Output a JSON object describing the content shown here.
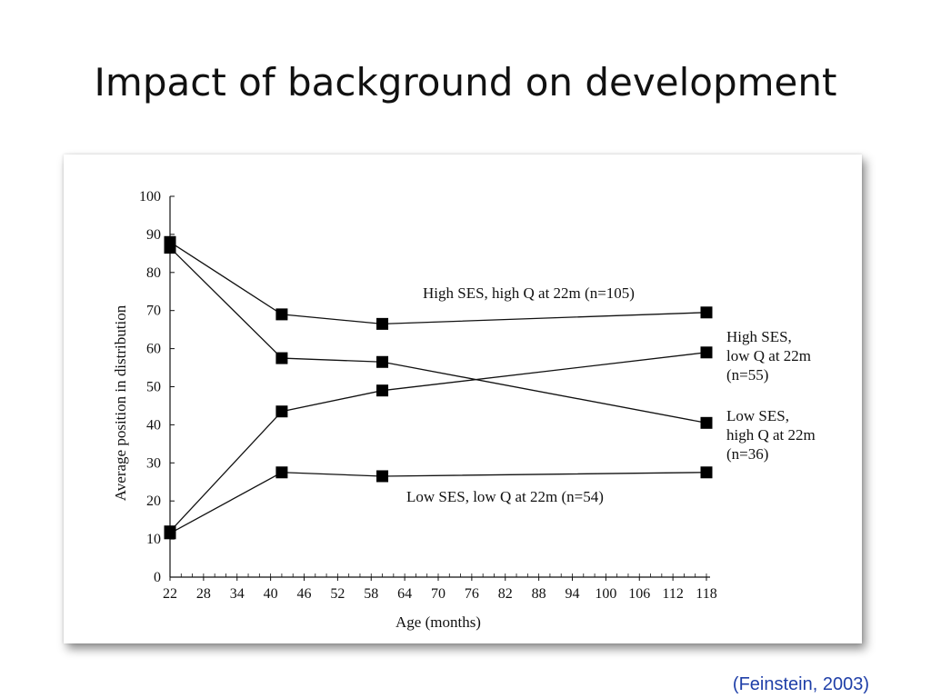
{
  "slide": {
    "title": "Impact of background on development",
    "citation": "(Feinstein, 2003)"
  },
  "chart_data": {
    "type": "line",
    "title": "",
    "xlabel": "Age (months)",
    "ylabel": "Average position in distribution",
    "xlim": [
      22,
      118
    ],
    "ylim": [
      0,
      100
    ],
    "x_ticks": [
      22,
      28,
      34,
      40,
      46,
      52,
      58,
      64,
      70,
      76,
      82,
      88,
      94,
      100,
      106,
      112,
      118
    ],
    "y_ticks": [
      0,
      10,
      20,
      30,
      40,
      50,
      60,
      70,
      80,
      90,
      100
    ],
    "x": [
      22,
      42,
      60,
      118
    ],
    "grid": false,
    "legend": "direct labels next to series",
    "colors": {
      "line": "#111111",
      "marker": "#000000"
    },
    "series": [
      {
        "name": "High SES, high Q at 22m (n=105)",
        "values": [
          88,
          69,
          66.5,
          69.5
        ]
      },
      {
        "name": "High SES, low Q at 22m (n=55)",
        "values": [
          12,
          43.5,
          49,
          59
        ]
      },
      {
        "name": "Low SES, high Q at 22m (n=36)",
        "values": [
          86.5,
          57.5,
          56.5,
          40.5
        ]
      },
      {
        "name": "Low SES, low Q at 22m (n=54)",
        "values": [
          11.5,
          27.5,
          26.5,
          27.5
        ]
      }
    ],
    "annotations": [
      {
        "lines": [
          "High SES, high Q at 22m (n=105)"
        ]
      },
      {
        "lines": [
          "High SES,",
          "low Q at 22m",
          "(n=55)"
        ]
      },
      {
        "lines": [
          "Low SES,",
          "high Q at 22m",
          "(n=36)"
        ]
      },
      {
        "lines": [
          "Low SES, low Q at 22m (n=54)"
        ]
      }
    ]
  }
}
